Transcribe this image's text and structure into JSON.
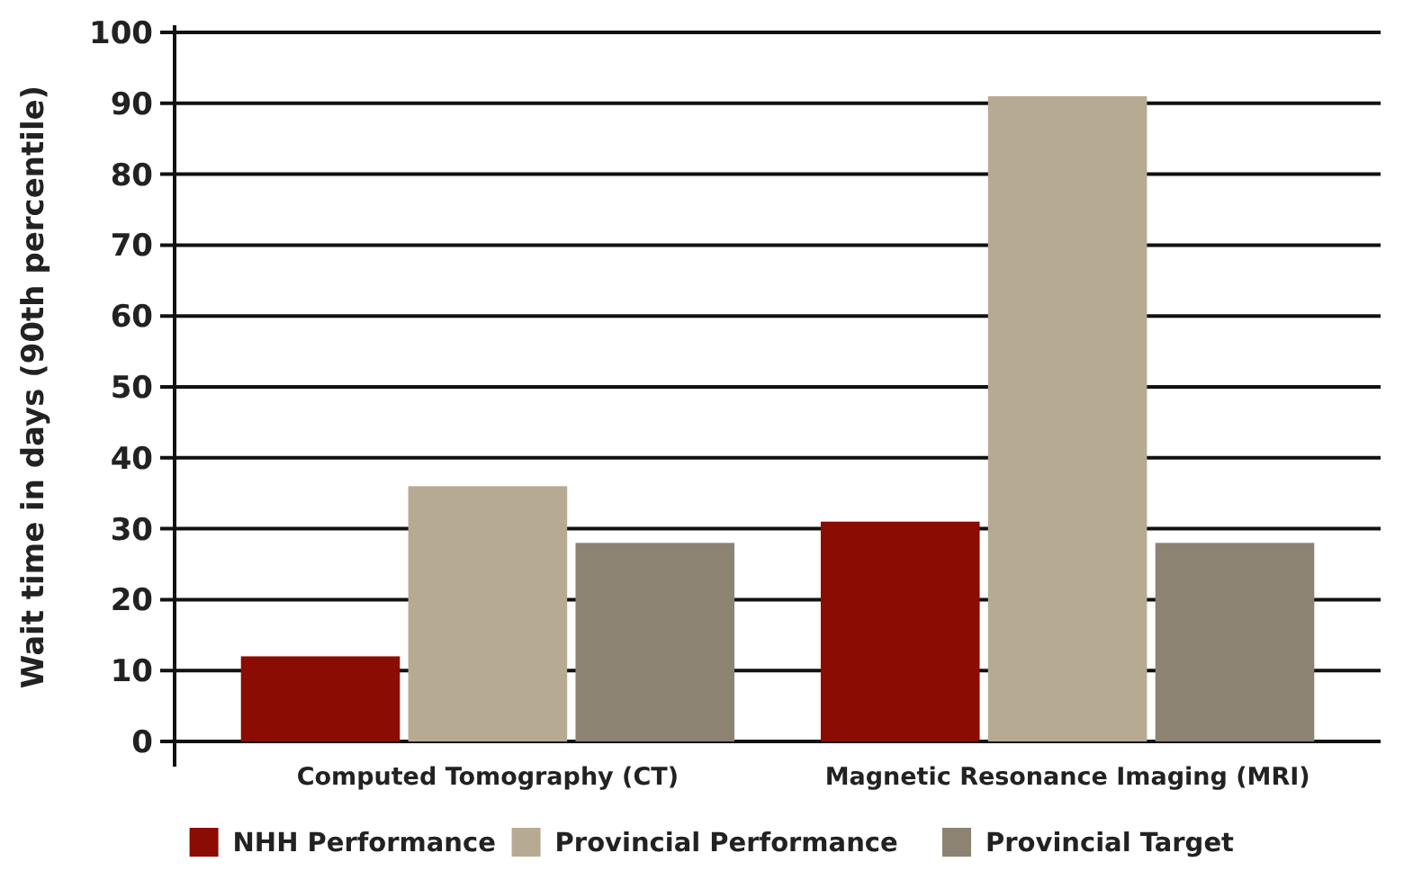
{
  "chart_data": {
    "type": "bar",
    "ylabel": "Wait time in days (90th percentile)",
    "categories": [
      "Computed Tomography (CT)",
      "Magnetic Resonance Imaging (MRI)"
    ],
    "series": [
      {
        "name": "NHH Performance",
        "color": "#8b0c02",
        "values": [
          12,
          31
        ]
      },
      {
        "name": "Provincial Performance",
        "color": "#b7aa93",
        "values": [
          36,
          91
        ]
      },
      {
        "name": "Provincial Target",
        "color": "#8c8373",
        "values": [
          28,
          28
        ]
      }
    ],
    "ylim": [
      0,
      100
    ],
    "yticks": [
      0,
      10,
      20,
      30,
      40,
      50,
      60,
      70,
      80,
      90,
      100
    ],
    "grid": "y",
    "legend": "bottom"
  }
}
